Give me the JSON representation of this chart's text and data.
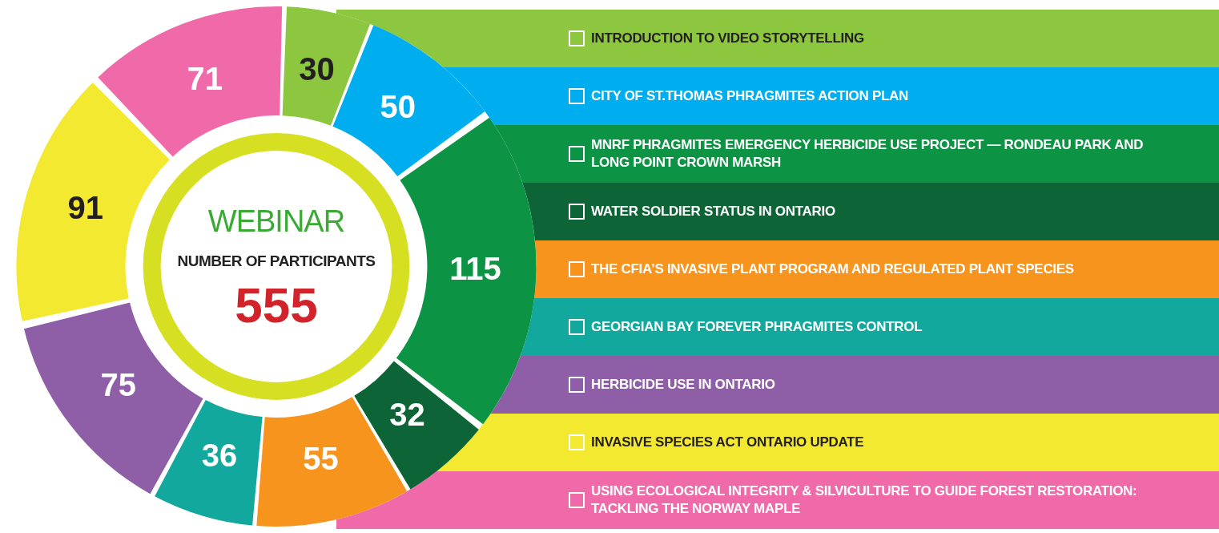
{
  "chart_data": {
    "type": "donut",
    "title": "WEBINAR",
    "subtitle": "NUMBER OF PARTICIPANTS",
    "annotations": [
      "555"
    ],
    "categories": [
      "INTRODUCTION TO VIDEO STORYTELLING",
      "CITY OF ST.THOMAS PHRAGMITES ACTION PLAN",
      "MNRF PHRAGMITES EMERGENCY HERBICIDE USE PROJECT — RONDEAU PARK AND LONG POINT CROWN MARSH",
      "WATER SOLDIER STATUS IN ONTARIO",
      "THE CFIA’S INVASIVE PLANT PROGRAM AND REGULATED PLANT SPECIES",
      "GEORGIAN BAY FOREVER PHRAGMITES CONTROL",
      "HERBICIDE USE IN ONTARIO",
      "INVASIVE SPECIES ACT ONTARIO UPDATE",
      "USING ECOLOGICAL INTEGRITY & SILVICULTURE TO GUIDE FOREST RESTORATION: TACKLING THE NORWAY MAPLE"
    ],
    "values": [
      30,
      50,
      115,
      32,
      55,
      36,
      75,
      91,
      71
    ],
    "colors": [
      "#8dc63f",
      "#00aeef",
      "#0c9444",
      "#0d6537",
      "#f7941d",
      "#12a89d",
      "#8e5ea7",
      "#f2e930",
      "#f06aa9"
    ],
    "data_labels": true,
    "legend": "right"
  }
}
